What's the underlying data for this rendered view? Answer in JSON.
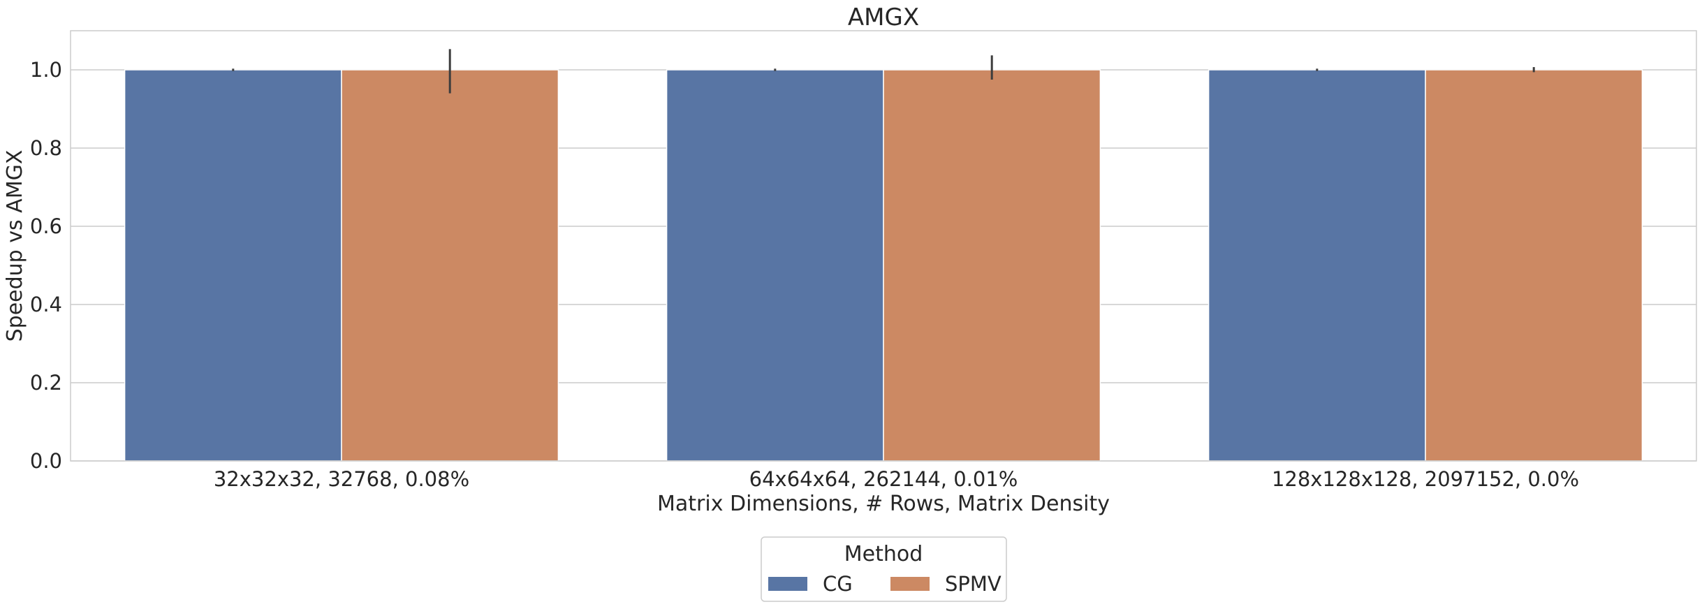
{
  "chart_data": {
    "type": "bar",
    "title": "AMGX",
    "xlabel": "Matrix Dimensions, # Rows, Matrix Density",
    "ylabel": "Speedup vs AMGX",
    "ylim": [
      0,
      1.1
    ],
    "yticks": [
      "0.0",
      "0.2",
      "0.4",
      "0.6",
      "0.8",
      "1.0"
    ],
    "grid": true,
    "categories": [
      "32x32x32, 32768, 0.08%",
      "64x64x64, 262144, 0.01%",
      "128x128x128, 2097152, 0.0%"
    ],
    "series": [
      {
        "name": "CG",
        "color": "#5875a4",
        "values": [
          1.0,
          1.0,
          1.0
        ],
        "error_low": [
          0.997,
          0.997,
          0.997
        ],
        "error_high": [
          1.003,
          1.003,
          1.003
        ]
      },
      {
        "name": "SPMV",
        "color": "#cc8963",
        "values": [
          1.0,
          1.0,
          1.0
        ],
        "error_low": [
          0.94,
          0.975,
          0.994
        ],
        "error_high": [
          1.053,
          1.037,
          1.007
        ]
      }
    ],
    "legend": {
      "title": "Method",
      "placement": "bottom-center",
      "entries": [
        "CG",
        "SPMV"
      ]
    }
  }
}
